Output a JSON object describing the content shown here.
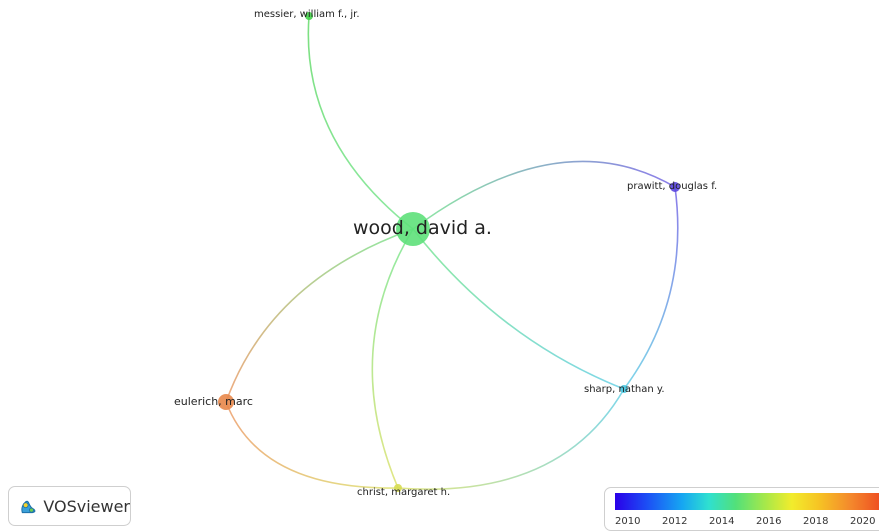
{
  "nodes": [
    {
      "id": "wood",
      "label": "wood, david a.",
      "color": "#5ee07a"
    },
    {
      "id": "messier",
      "label": "messier, william f., jr.",
      "color": "#44d24a"
    },
    {
      "id": "prawitt",
      "label": "prawitt, douglas f.",
      "color": "#5a46e0"
    },
    {
      "id": "sharp",
      "label": "sharp, nathan y.",
      "color": "#48c6e0"
    },
    {
      "id": "eulerich",
      "label": "eulerich, marc",
      "color": "#e8874a"
    },
    {
      "id": "christ",
      "label": "christ, margaret h.",
      "color": "#d6dc52"
    }
  ],
  "links": [
    {
      "source": "wood",
      "target": "messier"
    },
    {
      "source": "wood",
      "target": "prawitt"
    },
    {
      "source": "wood",
      "target": "sharp"
    },
    {
      "source": "wood",
      "target": "eulerich"
    },
    {
      "source": "wood",
      "target": "christ"
    },
    {
      "source": "prawitt",
      "target": "sharp"
    },
    {
      "source": "eulerich",
      "target": "christ"
    },
    {
      "source": "christ",
      "target": "sharp"
    }
  ],
  "logo": {
    "text": "VOSviewer",
    "icon": "vosviewer-logo-icon"
  },
  "legend": {
    "ticks": [
      "2010",
      "2012",
      "2014",
      "2016",
      "2018",
      "2020"
    ],
    "colors": [
      "#2a00e8",
      "#16a6f2",
      "#52e07a",
      "#f2ec2c",
      "#f4882c",
      "#ee4a20"
    ]
  }
}
